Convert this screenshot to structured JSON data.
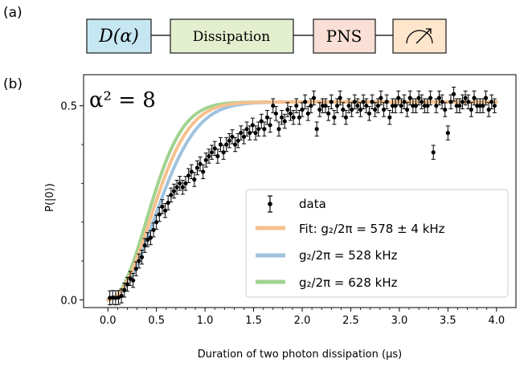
{
  "panel_a": {
    "label": "(a)",
    "boxes": [
      {
        "text": "D(α)",
        "color": "#c6e6f2"
      },
      {
        "text": "Dissipation",
        "color": "#e3efcf"
      },
      {
        "text": "PNS",
        "color": "#f9dfd6"
      },
      {
        "text": "measure-icon",
        "color": "#fde6cc"
      }
    ]
  },
  "panel_b": {
    "label": "(b)"
  },
  "chart_data": {
    "type": "scatter",
    "annotation": "α² = 8",
    "xlabel": "Duration of two photon dissipation (μs)",
    "ylabel": "P(|0⟩)",
    "xlim": [
      -0.25,
      4.2
    ],
    "ylim": [
      -0.02,
      0.58
    ],
    "xticks": [
      "0.0",
      "0.5",
      "1.0",
      "1.5",
      "2.0",
      "2.5",
      "3.0",
      "3.5",
      "4.0"
    ],
    "yticks": [
      "0.0",
      "0.5"
    ],
    "grid": false,
    "legend_position": "bottom-right",
    "series": [
      {
        "name": "data",
        "kind": "errorbar",
        "color": "#000000",
        "x": [
          0.02,
          0.05,
          0.08,
          0.11,
          0.14,
          0.17,
          0.2,
          0.23,
          0.26,
          0.29,
          0.32,
          0.35,
          0.38,
          0.41,
          0.44,
          0.47,
          0.5,
          0.53,
          0.56,
          0.59,
          0.62,
          0.65,
          0.68,
          0.71,
          0.74,
          0.77,
          0.8,
          0.83,
          0.86,
          0.89,
          0.92,
          0.95,
          0.98,
          1.01,
          1.04,
          1.07,
          1.1,
          1.13,
          1.16,
          1.19,
          1.22,
          1.25,
          1.28,
          1.31,
          1.34,
          1.37,
          1.4,
          1.43,
          1.46,
          1.49,
          1.52,
          1.55,
          1.58,
          1.61,
          1.64,
          1.67,
          1.7,
          1.73,
          1.76,
          1.79,
          1.82,
          1.85,
          1.88,
          1.91,
          1.94,
          1.97,
          2.0,
          2.03,
          2.06,
          2.09,
          2.12,
          2.15,
          2.18,
          2.21,
          2.24,
          2.27,
          2.3,
          2.33,
          2.36,
          2.39,
          2.42,
          2.45,
          2.48,
          2.51,
          2.54,
          2.57,
          2.6,
          2.63,
          2.66,
          2.69,
          2.72,
          2.75,
          2.78,
          2.81,
          2.84,
          2.87,
          2.9,
          2.93,
          2.96,
          2.99,
          3.02,
          3.05,
          3.08,
          3.11,
          3.14,
          3.17,
          3.2,
          3.23,
          3.26,
          3.29,
          3.32,
          3.35,
          3.38,
          3.41,
          3.44,
          3.47,
          3.5,
          3.53,
          3.56,
          3.59,
          3.62,
          3.65,
          3.68,
          3.71,
          3.74,
          3.77,
          3.8,
          3.83,
          3.86,
          3.89,
          3.92,
          3.95,
          3.98
        ],
        "y": [
          0.005,
          0.006,
          0.005,
          0.006,
          0.01,
          0.025,
          0.04,
          0.055,
          0.05,
          0.08,
          0.1,
          0.11,
          0.14,
          0.155,
          0.16,
          0.18,
          0.2,
          0.22,
          0.24,
          0.23,
          0.25,
          0.27,
          0.28,
          0.29,
          0.3,
          0.29,
          0.3,
          0.32,
          0.33,
          0.31,
          0.34,
          0.35,
          0.33,
          0.36,
          0.37,
          0.38,
          0.39,
          0.37,
          0.4,
          0.38,
          0.4,
          0.41,
          0.42,
          0.4,
          0.41,
          0.43,
          0.42,
          0.44,
          0.43,
          0.45,
          0.43,
          0.44,
          0.46,
          0.44,
          0.47,
          0.45,
          0.5,
          0.48,
          0.44,
          0.47,
          0.46,
          0.49,
          0.48,
          0.47,
          0.5,
          0.47,
          0.49,
          0.51,
          0.48,
          0.5,
          0.52,
          0.44,
          0.49,
          0.5,
          0.5,
          0.48,
          0.51,
          0.47,
          0.5,
          0.52,
          0.49,
          0.47,
          0.5,
          0.49,
          0.51,
          0.5,
          0.49,
          0.51,
          0.5,
          0.48,
          0.51,
          0.49,
          0.5,
          0.52,
          0.49,
          0.51,
          0.47,
          0.5,
          0.5,
          0.52,
          0.5,
          0.51,
          0.49,
          0.52,
          0.5,
          0.5,
          0.52,
          0.51,
          0.5,
          0.5,
          0.52,
          0.38,
          0.5,
          0.52,
          0.51,
          0.49,
          0.43,
          0.51,
          0.53,
          0.5,
          0.5,
          0.51,
          0.52,
          0.51,
          0.49,
          0.52,
          0.5,
          0.5,
          0.5,
          0.52,
          0.49,
          0.51,
          0.5
        ],
        "yerr": 0.018
      },
      {
        "name": "Fit: g₂/2π = 578 ± 4 kHz",
        "kind": "line",
        "color": "#f6c08e",
        "g2_khz": 578
      },
      {
        "name": "g₂/2π = 528 kHz",
        "kind": "line",
        "color": "#9ec3df",
        "g2_khz": 528
      },
      {
        "name": "g₂/2π = 628 kHz",
        "kind": "line",
        "color": "#9fd38f",
        "g2_khz": 628
      }
    ]
  }
}
